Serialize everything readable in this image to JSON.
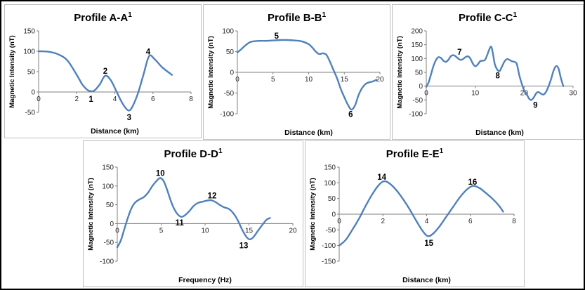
{
  "figure": {
    "background": "#ffffff",
    "border_color": "#000000",
    "panel_border_color": "#bfbfbf"
  },
  "line_color": "#4F81BD",
  "chart_data": [
    {
      "type": "line",
      "title": "Profile A-A",
      "title_superscript": "1",
      "xlabel": "Distance (km)",
      "ylabel": "Magnetic Intensity (nT)",
      "xlim": [
        0,
        8
      ],
      "ylim": [
        -50,
        150
      ],
      "xticks": [
        0,
        2,
        4,
        6,
        8
      ],
      "yticks": [
        150,
        100,
        50,
        0,
        -50
      ],
      "grid": false,
      "legend": "none",
      "series": [
        {
          "name": "magnetic-profile-a",
          "points": [
            [
              0,
              100
            ],
            [
              0.5,
              99
            ],
            [
              1,
              93
            ],
            [
              1.5,
              78
            ],
            [
              2,
              42
            ],
            [
              2.3,
              18
            ],
            [
              2.6,
              4
            ],
            [
              2.9,
              3
            ],
            [
              3.2,
              18
            ],
            [
              3.5,
              40
            ],
            [
              3.8,
              28
            ],
            [
              4.1,
              0
            ],
            [
              4.4,
              -28
            ],
            [
              4.7,
              -45
            ],
            [
              4.9,
              -38
            ],
            [
              5.2,
              -5
            ],
            [
              5.5,
              42
            ],
            [
              5.8,
              88
            ],
            [
              6.1,
              80
            ],
            [
              6.5,
              60
            ],
            [
              7,
              42
            ]
          ]
        }
      ],
      "annotations": [
        {
          "label": "1",
          "x": 2.75,
          "y": -17
        },
        {
          "label": "2",
          "x": 3.5,
          "y": 52
        },
        {
          "label": "3",
          "x": 4.75,
          "y": -62
        },
        {
          "label": "4",
          "x": 5.75,
          "y": 99
        }
      ]
    },
    {
      "type": "line",
      "title": "Profile B-B",
      "title_superscript": "1",
      "xlabel": "Distance (km)",
      "ylabel": "Magnetic Intensity (nT)",
      "xlim": [
        0,
        20
      ],
      "ylim": [
        -100,
        100
      ],
      "xticks": [
        0,
        5,
        10,
        15,
        20
      ],
      "yticks": [
        100,
        50,
        0,
        -50,
        -100
      ],
      "grid": false,
      "legend": "none",
      "series": [
        {
          "name": "magnetic-profile-b",
          "points": [
            [
              0,
              48
            ],
            [
              0.5,
              55
            ],
            [
              1,
              63
            ],
            [
              1.5,
              70
            ],
            [
              2,
              74
            ],
            [
              3,
              76
            ],
            [
              4,
              76
            ],
            [
              5,
              77
            ],
            [
              6,
              78
            ],
            [
              7,
              78
            ],
            [
              8,
              77
            ],
            [
              9,
              75
            ],
            [
              10,
              68
            ],
            [
              10.5,
              60
            ],
            [
              11,
              50
            ],
            [
              11.5,
              44
            ],
            [
              12,
              46
            ],
            [
              12.5,
              42
            ],
            [
              13,
              25
            ],
            [
              13.5,
              5
            ],
            [
              14,
              -15
            ],
            [
              14.5,
              -40
            ],
            [
              15,
              -60
            ],
            [
              15.5,
              -78
            ],
            [
              16,
              -90
            ],
            [
              16.5,
              -80
            ],
            [
              17,
              -55
            ],
            [
              17.5,
              -38
            ],
            [
              18,
              -28
            ],
            [
              18.5,
              -24
            ],
            [
              19,
              -22
            ],
            [
              19.5,
              -18
            ]
          ]
        }
      ],
      "annotations": [
        {
          "label": "5",
          "x": 5.5,
          "y": 88
        },
        {
          "label": "6",
          "x": 15.9,
          "y": -101
        }
      ]
    },
    {
      "type": "line",
      "title": "Profile C-C",
      "title_superscript": "1",
      "xlabel": "Distance (km)",
      "ylabel": "Magnetic Intensity (nT)",
      "xlim": [
        0,
        30
      ],
      "ylim": [
        -100,
        200
      ],
      "xticks": [
        0,
        10,
        20,
        30
      ],
      "yticks": [
        200,
        150,
        100,
        50,
        0,
        -50,
        -100
      ],
      "grid": false,
      "legend": "none",
      "series": [
        {
          "name": "magnetic-profile-c",
          "points": [
            [
              0,
              -3
            ],
            [
              0.5,
              15
            ],
            [
              1,
              45
            ],
            [
              1.5,
              75
            ],
            [
              2,
              95
            ],
            [
              2.5,
              105
            ],
            [
              3,
              102
            ],
            [
              3.5,
              92
            ],
            [
              4,
              88
            ],
            [
              4.5,
              95
            ],
            [
              5,
              108
            ],
            [
              5.5,
              112
            ],
            [
              6,
              108
            ],
            [
              6.5,
              100
            ],
            [
              7,
              95
            ],
            [
              7.5,
              98
            ],
            [
              8,
              105
            ],
            [
              8.5,
              108
            ],
            [
              9,
              100
            ],
            [
              9.5,
              82
            ],
            [
              10,
              72
            ],
            [
              10.5,
              78
            ],
            [
              11,
              90
            ],
            [
              11.5,
              92
            ],
            [
              12,
              95
            ],
            [
              12.5,
              115
            ],
            [
              13,
              138
            ],
            [
              13.3,
              142
            ],
            [
              13.6,
              120
            ],
            [
              14,
              80
            ],
            [
              14.5,
              60
            ],
            [
              15,
              55
            ],
            [
              15.5,
              72
            ],
            [
              16,
              90
            ],
            [
              16.5,
              98
            ],
            [
              17,
              95
            ],
            [
              17.5,
              90
            ],
            [
              18,
              88
            ],
            [
              18.5,
              80
            ],
            [
              19,
              40
            ],
            [
              19.5,
              10
            ],
            [
              20,
              -15
            ],
            [
              20.5,
              -28
            ],
            [
              21,
              -45
            ],
            [
              21.5,
              -50
            ],
            [
              22,
              -40
            ],
            [
              22.5,
              -25
            ],
            [
              23,
              -22
            ],
            [
              23.5,
              -28
            ],
            [
              24,
              -30
            ],
            [
              24.5,
              -20
            ],
            [
              25,
              0
            ],
            [
              25.5,
              25
            ],
            [
              26,
              55
            ],
            [
              26.5,
              72
            ],
            [
              27,
              65
            ],
            [
              27.5,
              30
            ],
            [
              28,
              0
            ]
          ]
        }
      ],
      "annotations": [
        {
          "label": "7",
          "x": 6.8,
          "y": 124
        },
        {
          "label": "8",
          "x": 14.6,
          "y": 38
        },
        {
          "label": "9",
          "x": 22.3,
          "y": -68
        }
      ]
    },
    {
      "type": "line",
      "title": "Profile D-D",
      "title_superscript": "1",
      "xlabel": "Frequency (Hz)",
      "ylabel": "Magnetic Intensity (nT)",
      "xlim": [
        0,
        20
      ],
      "ylim": [
        -100,
        150
      ],
      "xticks": [
        0,
        5,
        10,
        15,
        20
      ],
      "yticks": [
        150,
        100,
        50,
        0,
        -50,
        -100
      ],
      "grid": false,
      "legend": "none",
      "series": [
        {
          "name": "magnetic-profile-d",
          "points": [
            [
              0,
              -63
            ],
            [
              0.4,
              -45
            ],
            [
              0.8,
              -15
            ],
            [
              1.2,
              15
            ],
            [
              1.6,
              40
            ],
            [
              2,
              55
            ],
            [
              2.5,
              64
            ],
            [
              3,
              70
            ],
            [
              3.5,
              82
            ],
            [
              4,
              100
            ],
            [
              4.5,
              114
            ],
            [
              4.9,
              121
            ],
            [
              5.3,
              112
            ],
            [
              5.7,
              88
            ],
            [
              6.1,
              60
            ],
            [
              6.5,
              38
            ],
            [
              6.9,
              24
            ],
            [
              7.3,
              18
            ],
            [
              7.7,
              22
            ],
            [
              8.2,
              33
            ],
            [
              8.7,
              47
            ],
            [
              9.2,
              55
            ],
            [
              9.7,
              58
            ],
            [
              10.2,
              61
            ],
            [
              10.7,
              62
            ],
            [
              11.2,
              57
            ],
            [
              11.7,
              49
            ],
            [
              12.2,
              43
            ],
            [
              12.7,
              39
            ],
            [
              13.2,
              28
            ],
            [
              13.7,
              10
            ],
            [
              14.2,
              -15
            ],
            [
              14.7,
              -35
            ],
            [
              15.1,
              -42
            ],
            [
              15.5,
              -36
            ],
            [
              16,
              -20
            ],
            [
              16.5,
              -4
            ],
            [
              17,
              10
            ],
            [
              17.4,
              15
            ]
          ]
        }
      ],
      "annotations": [
        {
          "label": "10",
          "x": 4.9,
          "y": 134
        },
        {
          "label": "11",
          "x": 7.1,
          "y": 3
        },
        {
          "label": "12",
          "x": 10.8,
          "y": 74
        },
        {
          "label": "13",
          "x": 14.4,
          "y": -58
        }
      ]
    },
    {
      "type": "line",
      "title": "Profile E-E",
      "title_superscript": "1",
      "xlabel": "Distance (km)",
      "ylabel": "Magnetic Intensity (nT)",
      "xlim": [
        0,
        8
      ],
      "ylim": [
        -150,
        150
      ],
      "xticks": [
        0,
        2,
        4,
        6,
        8
      ],
      "yticks": [
        150,
        100,
        50,
        0,
        -50,
        -100,
        -150
      ],
      "grid": false,
      "legend": "none",
      "series": [
        {
          "name": "magnetic-profile-e",
          "points": [
            [
              0,
              -100
            ],
            [
              0.3,
              -82
            ],
            [
              0.6,
              -50
            ],
            [
              0.9,
              -15
            ],
            [
              1.2,
              25
            ],
            [
              1.5,
              62
            ],
            [
              1.8,
              92
            ],
            [
              2.05,
              105
            ],
            [
              2.3,
              98
            ],
            [
              2.6,
              78
            ],
            [
              2.9,
              50
            ],
            [
              3.2,
              18
            ],
            [
              3.5,
              -18
            ],
            [
              3.8,
              -52
            ],
            [
              4.05,
              -70
            ],
            [
              4.3,
              -62
            ],
            [
              4.6,
              -38
            ],
            [
              4.9,
              -8
            ],
            [
              5.2,
              22
            ],
            [
              5.5,
              52
            ],
            [
              5.8,
              76
            ],
            [
              6.1,
              90
            ],
            [
              6.4,
              84
            ],
            [
              6.7,
              68
            ],
            [
              7,
              50
            ],
            [
              7.3,
              28
            ],
            [
              7.5,
              8
            ]
          ]
        }
      ],
      "annotations": [
        {
          "label": "14",
          "x": 1.95,
          "y": 119
        },
        {
          "label": "15",
          "x": 4.1,
          "y": -92
        },
        {
          "label": "16",
          "x": 6.1,
          "y": 103
        }
      ]
    }
  ]
}
